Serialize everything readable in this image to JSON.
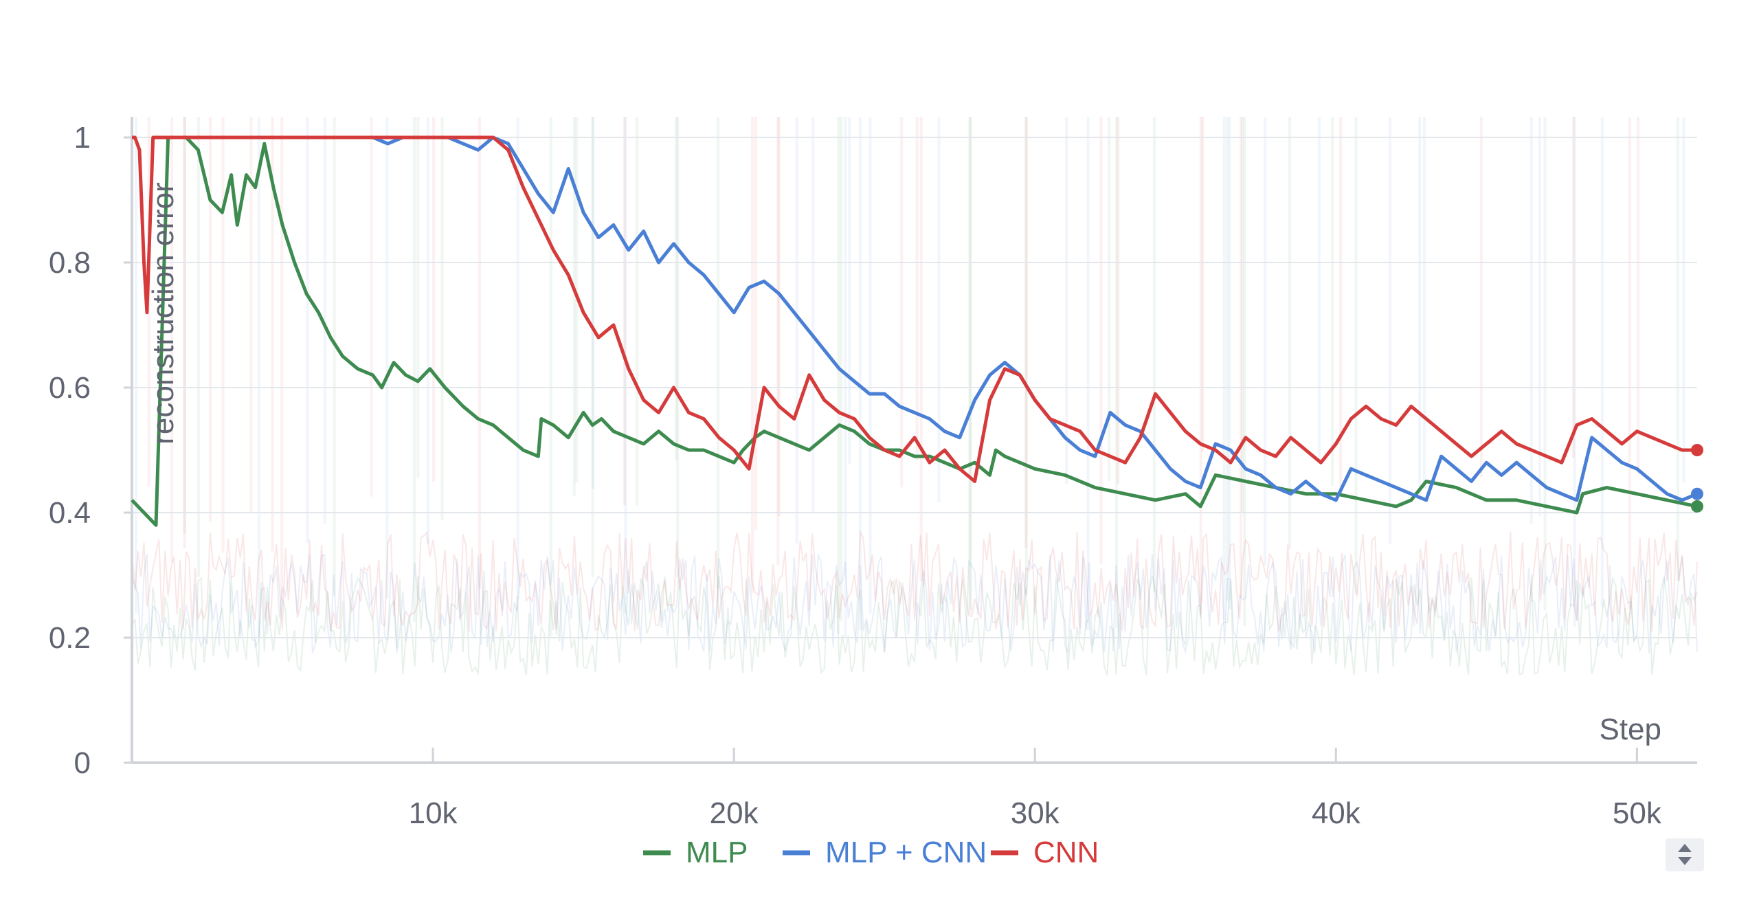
{
  "chart_data": {
    "type": "line",
    "xlabel": "Step",
    "ylabel": "reconstruction error",
    "xlim": [
      0,
      52000
    ],
    "ylim": [
      0,
      1.0
    ],
    "x_ticks": [
      10000,
      20000,
      30000,
      40000,
      50000
    ],
    "x_tick_labels": [
      "10k",
      "20k",
      "30k",
      "40k",
      "50k"
    ],
    "y_ticks": [
      0,
      0.2,
      0.4,
      0.6,
      0.8,
      1.0
    ],
    "y_tick_labels": [
      "0",
      "0.2",
      "0.4",
      "0.6",
      "0.8",
      "1"
    ],
    "grid": true,
    "legend_position": "bottom-center",
    "series": [
      {
        "name": "MLP",
        "color": "#3d8b4f",
        "x": [
          0,
          400,
          800,
          1200,
          1500,
          1800,
          2200,
          2600,
          3000,
          3300,
          3500,
          3800,
          4100,
          4400,
          4700,
          5000,
          5400,
          5800,
          6200,
          6600,
          7000,
          7500,
          8000,
          8300,
          8700,
          9100,
          9500,
          9900,
          10400,
          11000,
          11500,
          12000,
          12500,
          13000,
          13500,
          13600,
          14000,
          14500,
          15000,
          15300,
          15600,
          16000,
          16500,
          17000,
          17500,
          18000,
          18500,
          19000,
          19500,
          20000,
          20300,
          20700,
          21000,
          21500,
          22000,
          22500,
          23000,
          23500,
          24000,
          24500,
          25000,
          25500,
          26000,
          26500,
          27000,
          27500,
          28000,
          28500,
          28700,
          29000,
          29500,
          30000,
          31000,
          32000,
          33000,
          34000,
          35000,
          35500,
          36000,
          37000,
          38000,
          39000,
          40000,
          41000,
          42000,
          42500,
          43000,
          44000,
          45000,
          46000,
          47000,
          48000,
          48200,
          49000,
          50000,
          51000,
          52000
        ],
        "y": [
          0.42,
          0.4,
          0.38,
          1.0,
          1.0,
          1.0,
          0.98,
          0.9,
          0.88,
          0.94,
          0.86,
          0.94,
          0.92,
          0.99,
          0.92,
          0.86,
          0.8,
          0.75,
          0.72,
          0.68,
          0.65,
          0.63,
          0.62,
          0.6,
          0.64,
          0.62,
          0.61,
          0.63,
          0.6,
          0.57,
          0.55,
          0.54,
          0.52,
          0.5,
          0.49,
          0.55,
          0.54,
          0.52,
          0.56,
          0.54,
          0.55,
          0.53,
          0.52,
          0.51,
          0.53,
          0.51,
          0.5,
          0.5,
          0.49,
          0.48,
          0.5,
          0.52,
          0.53,
          0.52,
          0.51,
          0.5,
          0.52,
          0.54,
          0.53,
          0.51,
          0.5,
          0.5,
          0.49,
          0.49,
          0.48,
          0.47,
          0.48,
          0.46,
          0.5,
          0.49,
          0.48,
          0.47,
          0.46,
          0.44,
          0.43,
          0.42,
          0.43,
          0.41,
          0.46,
          0.45,
          0.44,
          0.43,
          0.43,
          0.42,
          0.41,
          0.42,
          0.45,
          0.44,
          0.42,
          0.42,
          0.41,
          0.4,
          0.43,
          0.44,
          0.43,
          0.42,
          0.41
        ]
      },
      {
        "name": "MLP + CNN",
        "color": "#4a7fd6",
        "x": [
          8000,
          8500,
          9000,
          9500,
          10000,
          10500,
          11000,
          11500,
          12000,
          12500,
          13000,
          13500,
          14000,
          14500,
          15000,
          15500,
          16000,
          16500,
          17000,
          17500,
          18000,
          18500,
          19000,
          19500,
          20000,
          20500,
          21000,
          21500,
          22000,
          22500,
          23000,
          23500,
          24000,
          24500,
          25000,
          25500,
          26000,
          26500,
          27000,
          27500,
          28000,
          28500,
          29000,
          29500,
          30000,
          30500,
          31000,
          31500,
          32000,
          32500,
          33000,
          33500,
          34000,
          34500,
          35000,
          35500,
          36000,
          36500,
          37000,
          37500,
          38000,
          38500,
          39000,
          39500,
          40000,
          40500,
          41000,
          41500,
          42000,
          42500,
          43000,
          43500,
          44000,
          44500,
          45000,
          45500,
          46000,
          46500,
          47000,
          47500,
          48000,
          48500,
          49000,
          49500,
          50000,
          50500,
          51000,
          51500,
          52000
        ],
        "y": [
          1.0,
          0.99,
          1.0,
          1.0,
          1.0,
          1.0,
          0.99,
          0.98,
          1.0,
          0.99,
          0.95,
          0.91,
          0.88,
          0.95,
          0.88,
          0.84,
          0.86,
          0.82,
          0.85,
          0.8,
          0.83,
          0.8,
          0.78,
          0.75,
          0.72,
          0.76,
          0.77,
          0.75,
          0.72,
          0.69,
          0.66,
          0.63,
          0.61,
          0.59,
          0.59,
          0.57,
          0.56,
          0.55,
          0.53,
          0.52,
          0.58,
          0.62,
          0.64,
          0.62,
          0.58,
          0.55,
          0.52,
          0.5,
          0.49,
          0.56,
          0.54,
          0.53,
          0.5,
          0.47,
          0.45,
          0.44,
          0.51,
          0.5,
          0.47,
          0.46,
          0.44,
          0.43,
          0.45,
          0.43,
          0.42,
          0.47,
          0.46,
          0.45,
          0.44,
          0.43,
          0.42,
          0.49,
          0.47,
          0.45,
          0.48,
          0.46,
          0.48,
          0.46,
          0.44,
          0.43,
          0.42,
          0.52,
          0.5,
          0.48,
          0.47,
          0.45,
          0.43,
          0.42,
          0.43
        ]
      },
      {
        "name": "CNN",
        "color": "#d63b3b",
        "x": [
          0,
          100,
          250,
          400,
          500,
          700,
          1000,
          12000,
          12500,
          13000,
          13500,
          14000,
          14500,
          15000,
          15500,
          16000,
          16500,
          17000,
          17500,
          18000,
          18500,
          19000,
          19500,
          20000,
          20500,
          21000,
          21500,
          22000,
          22500,
          23000,
          23500,
          24000,
          24500,
          25000,
          25500,
          26000,
          26500,
          27000,
          27500,
          28000,
          28500,
          29000,
          29500,
          30000,
          30500,
          31000,
          31500,
          32000,
          32500,
          33000,
          33500,
          34000,
          34500,
          35000,
          35500,
          36000,
          36500,
          37000,
          37500,
          38000,
          38500,
          39000,
          39500,
          40000,
          40500,
          41000,
          41500,
          42000,
          42500,
          43000,
          43500,
          44000,
          44500,
          45000,
          45500,
          46000,
          46500,
          47000,
          47500,
          48000,
          48500,
          49000,
          49500,
          50000,
          50500,
          51000,
          51500,
          52000
        ],
        "y": [
          1.0,
          1.0,
          0.98,
          0.8,
          0.72,
          1.0,
          1.0,
          1.0,
          0.98,
          0.92,
          0.87,
          0.82,
          0.78,
          0.72,
          0.68,
          0.7,
          0.63,
          0.58,
          0.56,
          0.6,
          0.56,
          0.55,
          0.52,
          0.5,
          0.47,
          0.6,
          0.57,
          0.55,
          0.62,
          0.58,
          0.56,
          0.55,
          0.52,
          0.5,
          0.49,
          0.52,
          0.48,
          0.5,
          0.47,
          0.45,
          0.58,
          0.63,
          0.62,
          0.58,
          0.55,
          0.54,
          0.53,
          0.5,
          0.49,
          0.48,
          0.52,
          0.59,
          0.56,
          0.53,
          0.51,
          0.5,
          0.48,
          0.52,
          0.5,
          0.49,
          0.52,
          0.5,
          0.48,
          0.51,
          0.55,
          0.57,
          0.55,
          0.54,
          0.57,
          0.55,
          0.53,
          0.51,
          0.49,
          0.51,
          0.53,
          0.51,
          0.5,
          0.49,
          0.48,
          0.54,
          0.55,
          0.53,
          0.51,
          0.53,
          0.52,
          0.51,
          0.5,
          0.5
        ]
      }
    ]
  }
}
